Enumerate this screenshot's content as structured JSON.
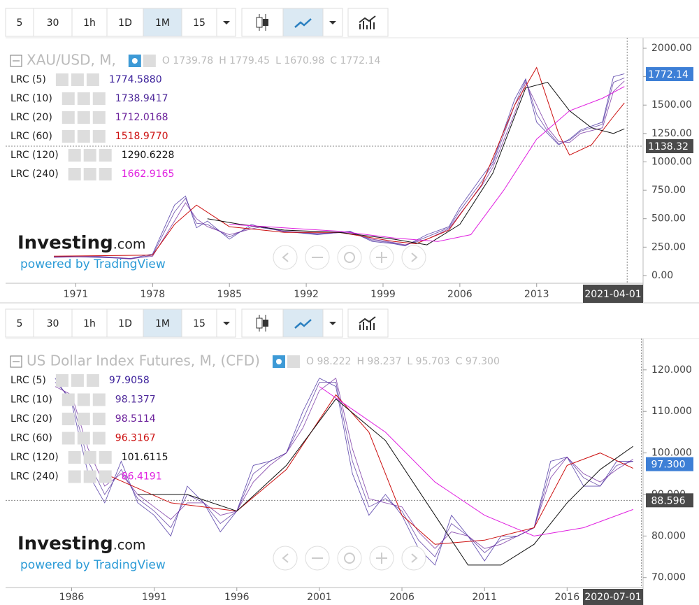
{
  "chart_data": [
    {
      "type": "line",
      "toolbar": [
        "5",
        "30",
        "1h",
        "1D",
        "1M",
        "15"
      ],
      "title": "XAU/USD, M,",
      "ohlc": [
        "O 1739.78",
        "H 1779.45",
        "L 1670.98",
        "C 1772.14"
      ],
      "brand": {
        "name": "Investing",
        "suffix": ".com",
        "powered": "powered by TradingView"
      },
      "xlim": [
        1964.6,
        2022.7
      ],
      "xticks": [
        1971,
        1978,
        1985,
        1992,
        1999,
        2006,
        2013
      ],
      "ylim": [
        -68,
        2043
      ],
      "yticks": [
        {
          "value": 0,
          "label": "0.00"
        },
        {
          "value": 250,
          "label": "250.00"
        },
        {
          "value": 500,
          "label": "500.00"
        },
        {
          "value": 750,
          "label": "750.00"
        },
        {
          "value": 1000,
          "label": "1000.00"
        },
        {
          "value": 1250,
          "label": "1250.00"
        },
        {
          "value": 1500,
          "label": "1500.00"
        },
        {
          "value": 1750,
          "label": "1750.00"
        },
        {
          "value": 2000,
          "label": "2000.00"
        }
      ],
      "price_labels": [
        {
          "value": 1772.14,
          "label": "1772.14",
          "color": "#3d7fd6"
        },
        {
          "value": 1138.32,
          "label": "1138.32",
          "color": "#4a4a4a"
        }
      ],
      "x_label": {
        "value": 2021.25,
        "label": "2021-04-01"
      },
      "series": [
        {
          "name": "LRC (5)",
          "color": "#3a1f9a",
          "current": {
            "value": 1774.588,
            "label": "1774.5880"
          },
          "x": [
            1969,
            1973,
            1976,
            1978,
            1980,
            1981,
            1982,
            1983,
            1985,
            1987,
            1988,
            1990,
            1993,
            1996,
            1998,
            2000,
            2001,
            2003,
            2005,
            2006,
            2008,
            2009,
            2011,
            2012,
            2013,
            2014,
            2015,
            2016,
            2017,
            2019,
            2020,
            2021
          ],
          "values": [
            170,
            160,
            150,
            190,
            620,
            700,
            420,
            480,
            320,
            450,
            420,
            390,
            360,
            390,
            300,
            280,
            260,
            360,
            430,
            600,
            870,
            1000,
            1550,
            1730,
            1350,
            1250,
            1150,
            1200,
            1280,
            1350,
            1750,
            1775
          ]
        },
        {
          "name": "LRC (10)",
          "color": "#4f2a9a",
          "current": {
            "value": 1738.9417,
            "label": "1738.9417"
          },
          "x": [
            1969,
            1973,
            1976,
            1978,
            1980,
            1981,
            1982,
            1983,
            1985,
            1987,
            1988,
            1990,
            1993,
            1996,
            1998,
            2000,
            2001,
            2003,
            2005,
            2006,
            2008,
            2009,
            2011,
            2012,
            2013,
            2014,
            2015,
            2016,
            2017,
            2019,
            2020,
            2021
          ],
          "values": [
            165,
            165,
            145,
            180,
            560,
            680,
            460,
            450,
            340,
            430,
            430,
            385,
            365,
            385,
            310,
            285,
            265,
            340,
            420,
            570,
            830,
            980,
            1500,
            1720,
            1420,
            1270,
            1160,
            1190,
            1270,
            1330,
            1700,
            1739
          ]
        },
        {
          "name": "LRC (20)",
          "color": "#6a1f9a",
          "current": {
            "value": 1712.0168,
            "label": "1712.0168"
          },
          "x": [
            1969,
            1973,
            1976,
            1978,
            1980,
            1981,
            1982,
            1983,
            1985,
            1987,
            1988,
            1990,
            1993,
            1996,
            1998,
            2000,
            2001,
            2003,
            2005,
            2006,
            2008,
            2009,
            2011,
            2012,
            2013,
            2014,
            2015,
            2016,
            2017,
            2019,
            2020,
            2021
          ],
          "values": [
            160,
            170,
            150,
            170,
            480,
            640,
            500,
            430,
            360,
            410,
            430,
            390,
            370,
            380,
            320,
            290,
            270,
            320,
            410,
            540,
            790,
            950,
            1430,
            1700,
            1500,
            1300,
            1180,
            1170,
            1250,
            1300,
            1620,
            1712
          ]
        },
        {
          "name": "LRC (60)",
          "color": "#cc1010",
          "current": {
            "value": 1518.977,
            "label": "1518.9770"
          },
          "x": [
            1969,
            1978,
            1980,
            1982,
            1985,
            1990,
            1995,
            2000,
            2002,
            2005,
            2008,
            2011,
            2013,
            2015,
            2016,
            2018,
            2020,
            2021
          ],
          "values": [
            170,
            180,
            450,
            620,
            430,
            380,
            380,
            300,
            280,
            400,
            800,
            1500,
            1830,
            1250,
            1060,
            1150,
            1400,
            1519
          ]
        },
        {
          "name": "LRC (120)",
          "color": "#111111",
          "current": {
            "value": 1290.6228,
            "label": "1290.6228"
          },
          "x": [
            1983,
            1986,
            1990,
            1995,
            2000,
            2003,
            2006,
            2009,
            2012,
            2014,
            2016,
            2018,
            2020,
            2021
          ],
          "values": [
            500,
            450,
            400,
            380,
            320,
            270,
            450,
            900,
            1650,
            1700,
            1450,
            1300,
            1250,
            1291
          ]
        },
        {
          "name": "LRC (240)",
          "color": "#e020e0",
          "current": {
            "value": 1662.9165,
            "label": "1662.9165"
          },
          "x": [
            1985,
            1990,
            1995,
            2000,
            2004,
            2007,
            2010,
            2013,
            2016,
            2019,
            2021
          ],
          "values": [
            450,
            420,
            390,
            330,
            300,
            360,
            750,
            1200,
            1450,
            1560,
            1663
          ]
        }
      ]
    },
    {
      "type": "line",
      "toolbar": [
        "5",
        "30",
        "1h",
        "1D",
        "1M",
        "15"
      ],
      "title": "US Dollar Index Futures, M, (CFD)",
      "ohlc": [
        "O 98.222",
        "H 98.237",
        "L 95.703",
        "C 97.300"
      ],
      "brand": {
        "name": "Investing",
        "suffix": ".com",
        "powered": "powered by TradingView"
      },
      "xlim": [
        1982,
        2020.6
      ],
      "xticks": [
        1986,
        1991,
        1996,
        2001,
        2006,
        2011,
        2016
      ],
      "ylim": [
        67.6,
        126.2
      ],
      "yticks": [
        {
          "value": 70,
          "label": "70.000"
        },
        {
          "value": 80,
          "label": "80.000"
        },
        {
          "value": 90,
          "label": "90.000"
        },
        {
          "value": 100,
          "label": "100.000"
        },
        {
          "value": 110,
          "label": "110.000"
        },
        {
          "value": 120,
          "label": "120.000"
        }
      ],
      "price_labels": [
        {
          "value": 97.3,
          "label": "97.300",
          "color": "#3d7fd6"
        },
        {
          "value": 88.596,
          "label": "88.596",
          "color": "#4a4a4a"
        }
      ],
      "x_label": {
        "value": 2020.5,
        "label": "2020-07-01"
      },
      "series": [
        {
          "name": "LRC (5)",
          "color": "#3a1f9a",
          "current": {
            "value": 97.9058,
            "label": "97.9058"
          },
          "x": [
            1985,
            1986,
            1987,
            1988,
            1989,
            1990,
            1991,
            1992,
            1993,
            1994,
            1995,
            1996,
            1997,
            1998,
            1999,
            2000,
            2001,
            2002,
            2003,
            2004,
            2005,
            2006,
            2007,
            2008,
            2009,
            2010,
            2011,
            2012,
            2013,
            2014,
            2015,
            2016,
            2017,
            2018,
            2019,
            2020
          ],
          "values": [
            118,
            112,
            95,
            88,
            98,
            88,
            85,
            80,
            92,
            88,
            81,
            86,
            97,
            98,
            100,
            110,
            118,
            116,
            95,
            85,
            90,
            85,
            77,
            73,
            85,
            80,
            74,
            80,
            80,
            82,
            98,
            99,
            92,
            92,
            98,
            98
          ]
        },
        {
          "name": "LRC (10)",
          "color": "#4f2a9a",
          "current": {
            "value": 98.1377,
            "label": "98.1377"
          },
          "x": [
            1985,
            1986,
            1987,
            1988,
            1989,
            1990,
            1991,
            1992,
            1993,
            1994,
            1995,
            1996,
            1997,
            1998,
            1999,
            2000,
            2001,
            2002,
            2003,
            2004,
            2005,
            2006,
            2007,
            2008,
            2009,
            2010,
            2011,
            2012,
            2013,
            2014,
            2015,
            2016,
            2017,
            2018,
            2019,
            2020
          ],
          "values": [
            117,
            113,
            98,
            90,
            96,
            89,
            86,
            82,
            90,
            88,
            83,
            86,
            95,
            98,
            100,
            108,
            117,
            117,
            98,
            87,
            89,
            86,
            79,
            75,
            83,
            80,
            76,
            79,
            80,
            82,
            96,
            99,
            94,
            92,
            97,
            98
          ]
        },
        {
          "name": "LRC (20)",
          "color": "#6a1f9a",
          "current": {
            "value": 98.5114,
            "label": "98.5114"
          },
          "x": [
            1985,
            1986,
            1987,
            1988,
            1989,
            1990,
            1991,
            1992,
            1993,
            1994,
            1995,
            1996,
            1997,
            1998,
            1999,
            2000,
            2001,
            2002,
            2003,
            2004,
            2005,
            2006,
            2007,
            2008,
            2009,
            2010,
            2011,
            2012,
            2013,
            2014,
            2015,
            2016,
            2017,
            2018,
            2019,
            2020
          ],
          "values": [
            116,
            114,
            101,
            92,
            95,
            90,
            87,
            84,
            88,
            88,
            85,
            86,
            93,
            97,
            100,
            106,
            115,
            118,
            101,
            89,
            88,
            87,
            81,
            77,
            81,
            80,
            77,
            78,
            80,
            82,
            94,
            99,
            95,
            93,
            96,
            98.5
          ]
        },
        {
          "name": "LRC (60)",
          "color": "#cc1010",
          "current": {
            "value": 96.3167,
            "label": "96.3167"
          },
          "x": [
            1988,
            1992,
            1996,
            1999,
            2002,
            2004,
            2006,
            2008,
            2011,
            2014,
            2016,
            2018,
            2020
          ],
          "values": [
            95,
            88,
            86,
            96,
            114,
            105,
            85,
            78,
            79,
            82,
            97,
            100,
            96.3
          ]
        },
        {
          "name": "LRC (120)",
          "color": "#111111",
          "current": {
            "value": 101.6115,
            "label": "101.6115"
          },
          "x": [
            1990,
            1993,
            1996,
            1999,
            2002,
            2005,
            2008,
            2010,
            2012,
            2014,
            2016,
            2018,
            2020
          ],
          "values": [
            90,
            90,
            86,
            97,
            113,
            103,
            85,
            73,
            73,
            78,
            88,
            96,
            101.6
          ]
        },
        {
          "name": "LRC (240)",
          "color": "#e020e0",
          "current": {
            "value": 86.4191,
            "label": "86.4191"
          },
          "x": [
            2001,
            2005,
            2008,
            2011,
            2014,
            2017,
            2020
          ],
          "values": [
            116,
            105,
            93,
            85,
            80,
            82,
            86.4
          ]
        }
      ]
    }
  ]
}
